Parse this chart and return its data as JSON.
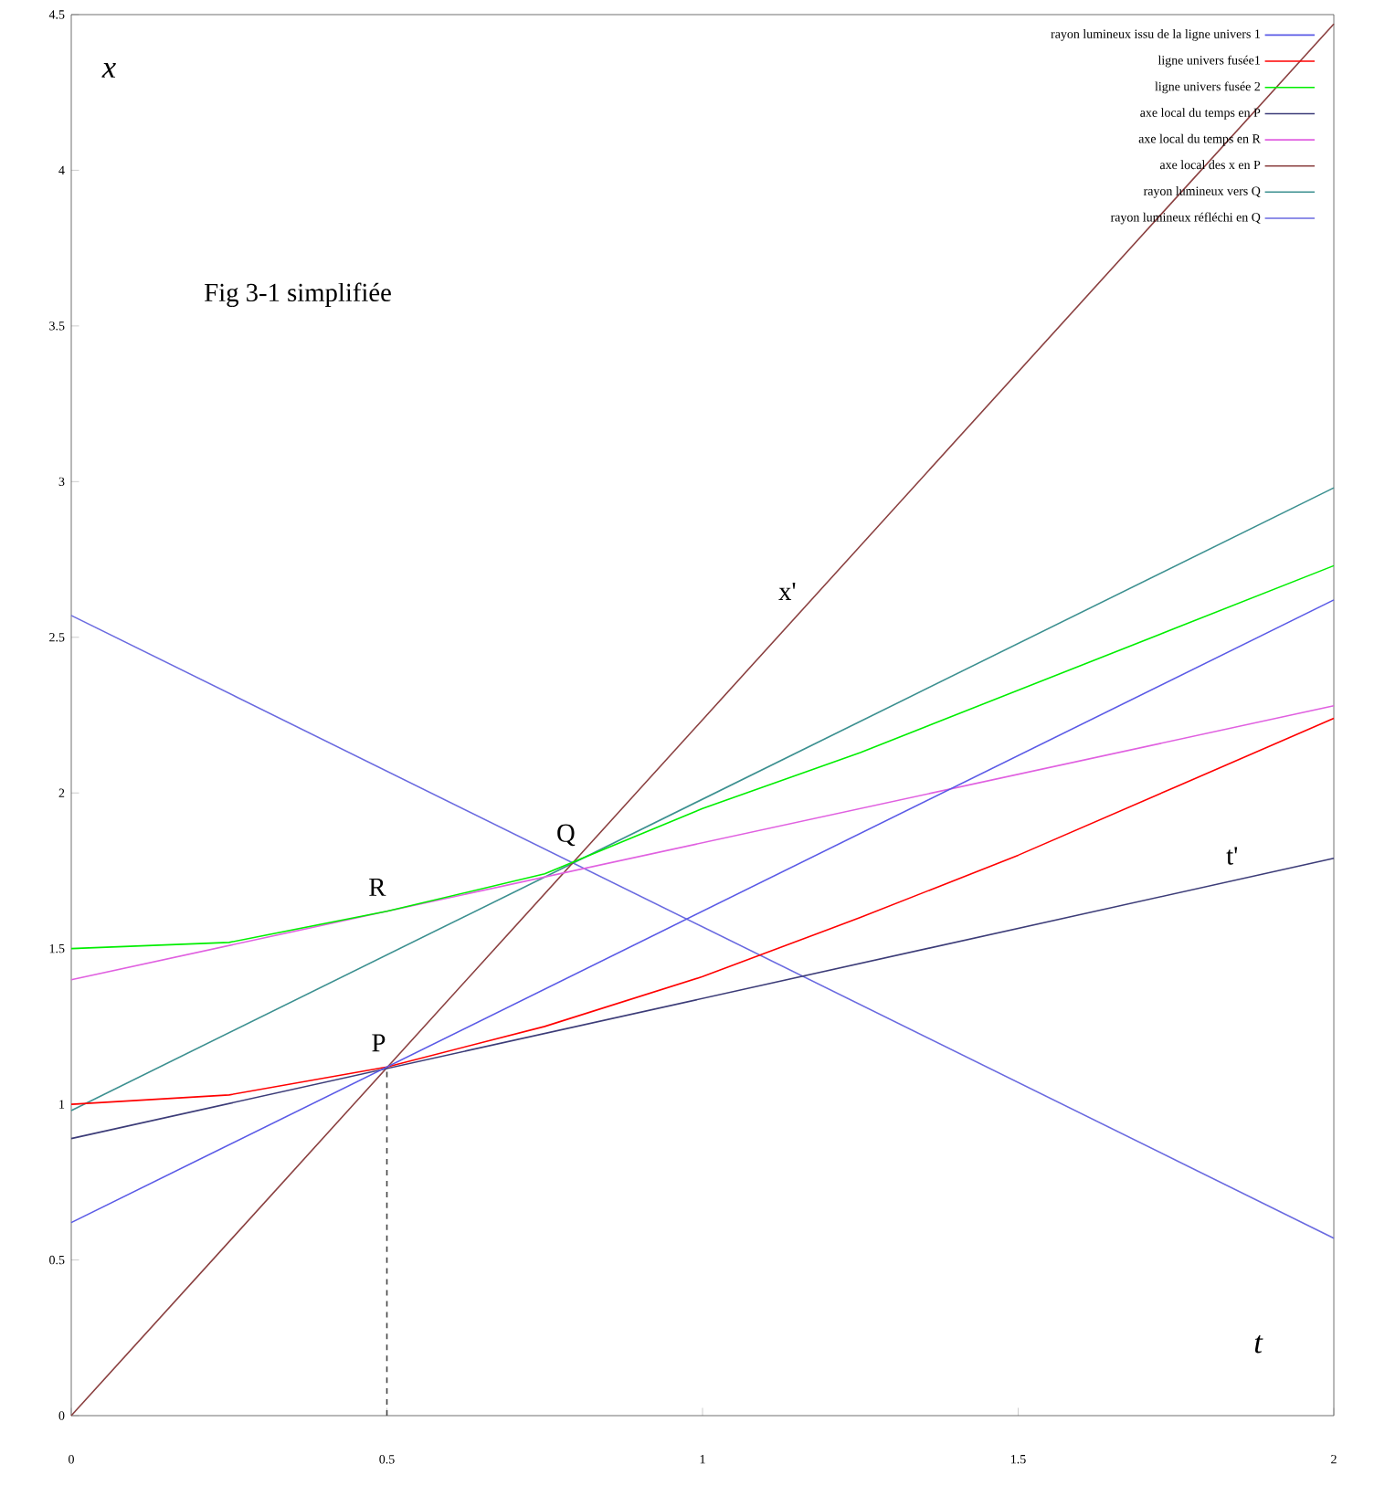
{
  "chart_data": {
    "type": "line",
    "xlabel": "t",
    "ylabel": "x",
    "xlim": [
      0,
      2
    ],
    "ylim": [
      0,
      4.5
    ],
    "xticks": [
      0,
      0.5,
      1,
      1.5,
      2
    ],
    "yticks": [
      0,
      0.5,
      1,
      1.5,
      2,
      2.5,
      3,
      3.5,
      4,
      4.5
    ],
    "legend": "top right",
    "grid": false,
    "marker": "none",
    "series": [
      {
        "name": "rayon lumineux issu de la ligne univers 1",
        "color": "#5a5ae6",
        "x": [
          0,
          2
        ],
        "values": [
          0.62,
          2.62
        ]
      },
      {
        "name": "ligne univers fusée1",
        "color": "#ff0000",
        "x": [
          0,
          0.25,
          0.5,
          0.75,
          1,
          1.25,
          1.5,
          1.75,
          2
        ],
        "values": [
          1.0,
          1.03,
          1.12,
          1.25,
          1.41,
          1.6,
          1.8,
          2.02,
          2.24
        ]
      },
      {
        "name": "ligne univers fusée 2",
        "color": "#00ee00",
        "x": [
          0,
          0.25,
          0.5,
          0.75,
          1,
          1.25,
          1.5,
          1.75,
          2
        ],
        "values": [
          1.5,
          1.52,
          1.62,
          1.74,
          1.95,
          2.13,
          2.33,
          2.53,
          2.73
        ]
      },
      {
        "name": "axe local du temps en P",
        "color": "#3c3c78",
        "x": [
          0,
          2
        ],
        "values": [
          0.89,
          1.79
        ]
      },
      {
        "name": "axe local du temps en R",
        "color": "#e060e0",
        "x": [
          0,
          2
        ],
        "values": [
          1.4,
          2.28
        ]
      },
      {
        "name": "axe local des x en P",
        "color": "#8b4040",
        "x": [
          0,
          2
        ],
        "values": [
          0,
          4.47
        ]
      },
      {
        "name": "rayon lumineux vers Q",
        "color": "#3c9090",
        "x": [
          0,
          2
        ],
        "values": [
          0.98,
          2.98
        ]
      },
      {
        "name": "rayon lumineux réfléchi en Q",
        "color": "#6a6ae0",
        "x": [
          0,
          2
        ],
        "values": [
          2.57,
          0.57
        ]
      },
      {
        "color": "#444444",
        "line_style": "dashed",
        "x": [
          0.5,
          0.5
        ],
        "values": [
          0,
          1.12
        ]
      }
    ],
    "annotations": [
      "Fig 3-1 simplifiée",
      {
        "text": "P",
        "x": 0.5,
        "y": 1.12
      },
      {
        "text": "Q",
        "x": 0.8,
        "y": 1.78
      },
      {
        "text": "R",
        "x": 0.5,
        "y": 1.62
      },
      {
        "text": "x'",
        "x": 1.15,
        "y": 2.57
      },
      {
        "text": "t'",
        "x": 1.85,
        "y": 1.72
      }
    ]
  }
}
